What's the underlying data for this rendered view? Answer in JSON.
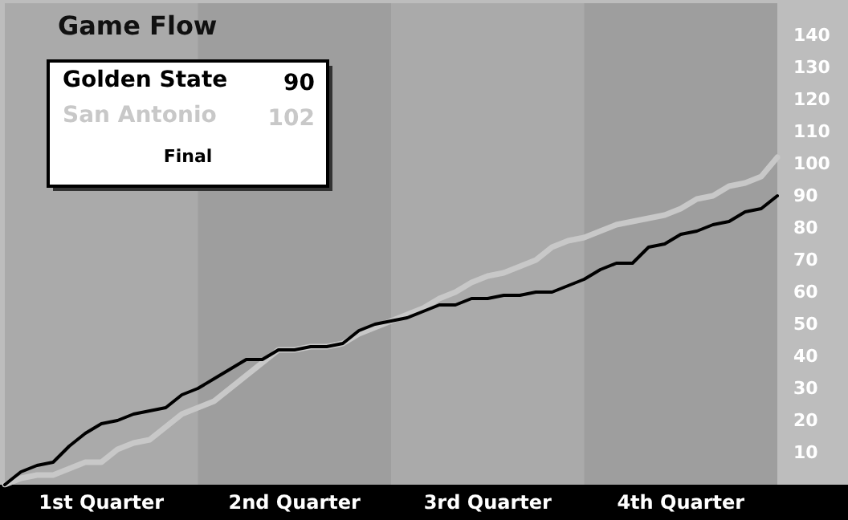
{
  "chart_data": {
    "type": "line",
    "title": "Game Flow",
    "annotations": [
      "90",
      "102",
      "Final"
    ],
    "categories": [
      null,
      null,
      null,
      null,
      null,
      null,
      "1st Quarter",
      null,
      null,
      null,
      null,
      null,
      null,
      null,
      null,
      null,
      null,
      null,
      "2nd Quarter",
      null,
      null,
      null,
      null,
      null,
      null,
      null,
      null,
      null,
      null,
      null,
      "3rd Quarter",
      null,
      null,
      null,
      null,
      null,
      null,
      null,
      null,
      null,
      null,
      null,
      "4th Quarter",
      null,
      null,
      null,
      null,
      null,
      null
    ],
    "ylim": [
      0,
      150
    ],
    "yticks": [
      10,
      20,
      30,
      40,
      50,
      60,
      70,
      80,
      90,
      100,
      110,
      120,
      130,
      140
    ],
    "legend": "top left",
    "marker": "none",
    "line_style": "solid",
    "series": [
      {
        "name": "Golden State",
        "color": "#000000",
        "values": [
          0,
          4,
          6,
          7,
          12,
          16,
          19,
          20,
          22,
          23,
          24,
          28,
          30,
          33,
          36,
          39,
          39,
          42,
          42,
          43,
          43,
          44,
          48,
          50,
          51,
          52,
          54,
          56,
          56,
          58,
          58,
          59,
          59,
          60,
          60,
          62,
          64,
          67,
          69,
          69,
          74,
          75,
          78,
          79,
          81,
          82,
          85,
          86,
          90
        ]
      },
      {
        "name": "San Antonio",
        "color": "#c8c8c8",
        "values": [
          0,
          2,
          3,
          3,
          5,
          7,
          7,
          11,
          13,
          14,
          18,
          22,
          24,
          26,
          30,
          34,
          38,
          42,
          42,
          43,
          43,
          44,
          47,
          49,
          51,
          53,
          55,
          58,
          60,
          63,
          65,
          66,
          68,
          70,
          74,
          76,
          77,
          79,
          81,
          82,
          83,
          84,
          86,
          89,
          90,
          93,
          94,
          96,
          102
        ]
      }
    ]
  }
}
